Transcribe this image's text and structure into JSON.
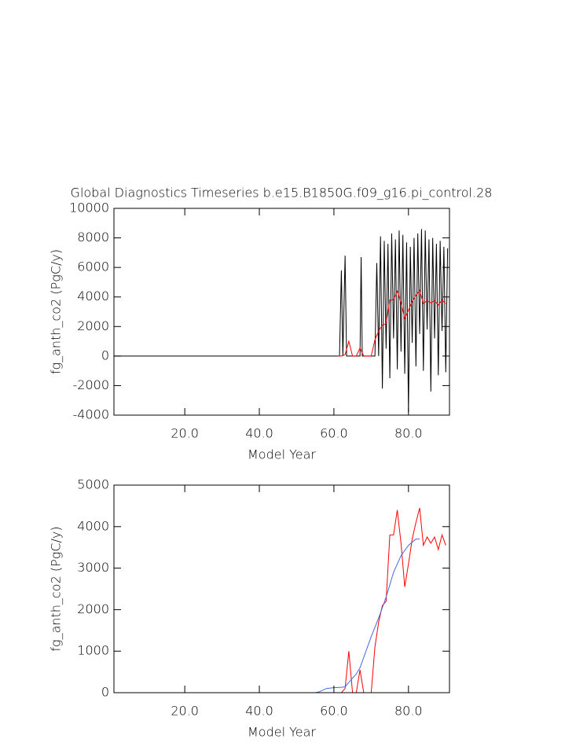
{
  "chart_data": [
    {
      "type": "line",
      "title": "Global Diagnostics Timeseries b.e15.B1850G.f09_g16.pi_control.28",
      "xlabel": "Model Year",
      "ylabel": "fg_anth_co2 (PgC/y)",
      "xlim": [
        1,
        91
      ],
      "ylim": [
        -4000,
        10000
      ],
      "xticks": [
        {
          "value": 20,
          "label": "20.0"
        },
        {
          "value": 40,
          "label": "40.0"
        },
        {
          "value": 60,
          "label": "60.0"
        },
        {
          "value": 80,
          "label": "80.0"
        }
      ],
      "yticks": [
        -4000,
        -2000,
        0,
        2000,
        4000,
        6000,
        8000,
        10000
      ],
      "series": [
        {
          "color": "#000000",
          "x": [
            1,
            61.5,
            62,
            62.4,
            63,
            63.4,
            67,
            67.3,
            67.6,
            71,
            71.5,
            72,
            72.5,
            73,
            73.5,
            74,
            74.5,
            75,
            75.5,
            76,
            76.5,
            77,
            77.5,
            78,
            78.5,
            79,
            79.5,
            80,
            80.5,
            81,
            81.5,
            82,
            82.5,
            83,
            83.5,
            84,
            84.5,
            85,
            85.5,
            86,
            86.5,
            87,
            87.5,
            88,
            88.5,
            89,
            89.5,
            90,
            90.5
          ],
          "values": [
            0,
            0,
            5800,
            0,
            6800,
            0,
            0,
            6700,
            0,
            0,
            6300,
            0,
            8100,
            -2200,
            7800,
            500,
            7600,
            -1500,
            8300,
            1200,
            7900,
            -900,
            8500,
            300,
            8200,
            -1200,
            7700,
            -3800,
            7400,
            900,
            8000,
            -700,
            8300,
            1500,
            8600,
            -1000,
            8500,
            1800,
            7900,
            -2400,
            8000,
            1200,
            7600,
            -1300,
            7800,
            1700,
            7400,
            -1100,
            7300
          ]
        },
        {
          "color": "#ff0000",
          "x": [
            61,
            62,
            63,
            64,
            65,
            66,
            67,
            68,
            69,
            70,
            71,
            72,
            73,
            74,
            75,
            76,
            77,
            78,
            79,
            80,
            81,
            82,
            83,
            84,
            85,
            86,
            87,
            88,
            89,
            90
          ],
          "values": [
            0,
            0,
            100,
            1000,
            0,
            0,
            550,
            0,
            0,
            0,
            1100,
            1700,
            2100,
            2200,
            3800,
            3800,
            4400,
            3600,
            2550,
            3100,
            3700,
            4100,
            4450,
            3550,
            3750,
            3600,
            3750,
            3450,
            3800,
            3550
          ]
        }
      ]
    },
    {
      "type": "line",
      "xlabel": "Model Year",
      "ylabel": "fg_anth_co2 (PgC/y)",
      "xlim": [
        1,
        91
      ],
      "ylim": [
        0,
        5000
      ],
      "xticks": [
        {
          "value": 20,
          "label": "20.0"
        },
        {
          "value": 40,
          "label": "40.0"
        },
        {
          "value": 60,
          "label": "60.0"
        },
        {
          "value": 80,
          "label": "80.0"
        }
      ],
      "yticks": [
        0,
        1000,
        2000,
        3000,
        4000,
        5000
      ],
      "series": [
        {
          "color": "#ff0000",
          "x": [
            61,
            62,
            63,
            64,
            65,
            66,
            67,
            68,
            69,
            70,
            71,
            72,
            73,
            74,
            75,
            76,
            77,
            78,
            79,
            80,
            81,
            82,
            83,
            84,
            85,
            86,
            87,
            88,
            89,
            90
          ],
          "values": [
            0,
            0,
            100,
            1000,
            0,
            0,
            550,
            0,
            0,
            0,
            1100,
            1700,
            2100,
            2200,
            3800,
            3800,
            4400,
            3600,
            2550,
            3100,
            3700,
            4100,
            4450,
            3550,
            3750,
            3600,
            3750,
            3450,
            3800,
            3550
          ]
        },
        {
          "color": "#4169e1",
          "x": [
            55,
            56,
            58,
            60,
            62,
            63,
            64,
            66,
            67,
            68,
            70,
            72,
            74,
            76,
            78,
            80,
            82,
            83
          ],
          "values": [
            0,
            20,
            100,
            120,
            130,
            140,
            250,
            450,
            600,
            850,
            1350,
            1800,
            2300,
            2900,
            3300,
            3550,
            3700,
            3700
          ]
        }
      ]
    }
  ]
}
